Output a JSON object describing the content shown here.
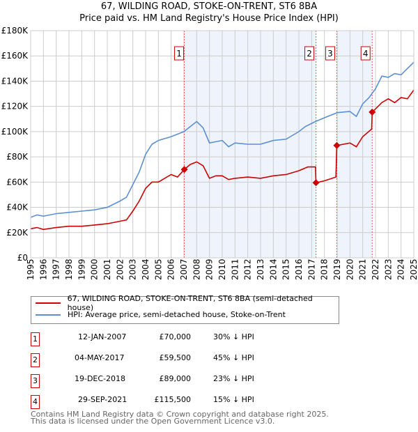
{
  "chart_data": {
    "type": "line",
    "title": "67, WILDING ROAD, STOKE-ON-TRENT, ST6 8BA",
    "subtitle": "Price paid vs. HM Land Registry's House Price Index (HPI)",
    "xlim": [
      1995,
      2025
    ],
    "ylim": [
      0,
      180000
    ],
    "x_ticks": [
      "1995",
      "1996",
      "1997",
      "1998",
      "1999",
      "2000",
      "2001",
      "2002",
      "2003",
      "2004",
      "2005",
      "2006",
      "2007",
      "2008",
      "2009",
      "2010",
      "2011",
      "2012",
      "2013",
      "2014",
      "2015",
      "2016",
      "2017",
      "2018",
      "2019",
      "2020",
      "2021",
      "2022",
      "2023",
      "2024",
      "2025"
    ],
    "y_ticks": [
      "£0",
      "£20K",
      "£40K",
      "£60K",
      "£80K",
      "£100K",
      "£120K",
      "£140K",
      "£160K",
      "£180K"
    ],
    "grid": true,
    "series": [
      {
        "name": "67, WILDING ROAD, STOKE-ON-TRENT, ST6 8BA (semi-detached house)",
        "color": "#cc0000",
        "x": [
          1995,
          1995.5,
          1996,
          1997,
          1998,
          1999,
          2000,
          2001,
          2002,
          2002.5,
          2003,
          2003.5,
          2004,
          2004.5,
          2005,
          2006,
          2006.5,
          2007.03,
          2007.5,
          2008,
          2008.5,
          2009,
          2009.5,
          2010,
          2010.5,
          2011,
          2012,
          2013,
          2014,
          2015,
          2016,
          2016.7,
          2017.3,
          2017.34,
          2018,
          2018.9,
          2018.97,
          2019.5,
          2020,
          2020.5,
          2021,
          2021.7,
          2021.74,
          2022,
          2022.5,
          2023,
          2023.5,
          2024,
          2024.5,
          2025
        ],
        "y": [
          23000,
          24000,
          22500,
          24000,
          25000,
          25000,
          26000,
          27000,
          29000,
          30000,
          37000,
          45000,
          55000,
          60000,
          60000,
          66000,
          64000,
          70000,
          74000,
          76000,
          73000,
          63000,
          65000,
          65000,
          62000,
          63000,
          64000,
          63000,
          65000,
          66000,
          69000,
          72000,
          72000,
          59500,
          61000,
          64000,
          89000,
          90000,
          91000,
          88000,
          96000,
          102000,
          115500,
          118000,
          123000,
          126000,
          123000,
          127000,
          126000,
          133000
        ]
      },
      {
        "name": "HPI: Average price, semi-detached house, Stoke-on-Trent",
        "color": "#5b8fd4",
        "x": [
          1995,
          1995.5,
          1996,
          1997,
          1998,
          1999,
          2000,
          2001,
          2002,
          2002.5,
          2003,
          2003.5,
          2004,
          2004.5,
          2005,
          2006,
          2006.5,
          2007,
          2007.5,
          2008,
          2008.5,
          2009,
          2009.5,
          2010,
          2010.5,
          2011,
          2012,
          2013,
          2014,
          2015,
          2016,
          2016.5,
          2017.3,
          2018,
          2019,
          2020,
          2020.5,
          2021,
          2021.5,
          2022,
          2022.5,
          2023,
          2023.5,
          2024,
          2024.5,
          2025
        ],
        "y": [
          32000,
          34000,
          33000,
          35000,
          36000,
          37000,
          38000,
          40000,
          45000,
          48000,
          58000,
          68000,
          82000,
          90000,
          93000,
          96000,
          98000,
          100000,
          104000,
          108000,
          103000,
          91000,
          92000,
          93000,
          88000,
          91000,
          90000,
          90000,
          93000,
          94000,
          100000,
          104000,
          108000,
          111000,
          115000,
          116000,
          112000,
          122000,
          127000,
          134000,
          144000,
          143000,
          146000,
          145000,
          150000,
          155000
        ]
      }
    ],
    "sales": [
      {
        "label": "1",
        "x": 2007.03,
        "y": 70000,
        "date": "12-JAN-2007",
        "price": "£70,000",
        "hpi": "30% ↓ HPI"
      },
      {
        "label": "2",
        "x": 2017.34,
        "y": 59500,
        "date": "04-MAY-2017",
        "price": "£59,500",
        "hpi": "45% ↓ HPI"
      },
      {
        "label": "3",
        "x": 2018.97,
        "y": 89000,
        "date": "19-DEC-2018",
        "price": "£89,000",
        "hpi": "23% ↓ HPI"
      },
      {
        "label": "4",
        "x": 2021.74,
        "y": 115500,
        "date": "29-SEP-2021",
        "price": "£115,500",
        "hpi": "15% ↓ HPI"
      }
    ]
  },
  "footer": [
    "Contains HM Land Registry data © Crown copyright and database right 2025.",
    "This data is licensed under the Open Government Licence v3.0."
  ]
}
